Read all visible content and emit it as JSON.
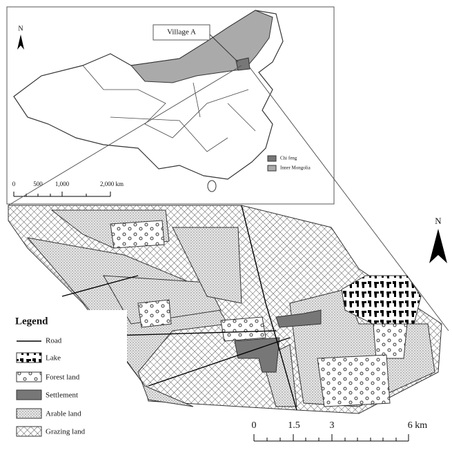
{
  "inset": {
    "north": "N",
    "callout": "Village A",
    "scale": [
      "0",
      "500",
      "1,000",
      "2,000 km"
    ],
    "legend": [
      "Chi feng",
      "Inner Mongolia"
    ]
  },
  "main": {
    "north": "N",
    "legend": {
      "title": "Legend",
      "items": [
        "Road",
        "Lake",
        "Forest land",
        "Settlement",
        "Arable land",
        "Grazing land"
      ]
    },
    "scale": [
      "0",
      "1.5",
      "3",
      "6 km"
    ]
  }
}
